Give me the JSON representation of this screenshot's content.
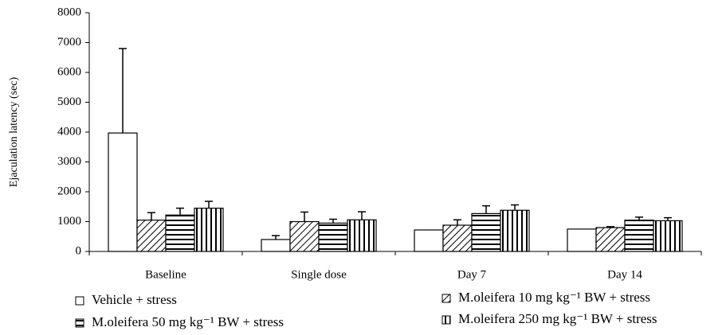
{
  "chart_data": {
    "type": "bar",
    "y_label": "Ejaculation latency (sec)",
    "categories": [
      "Baseline",
      "Single dose",
      "Day 7",
      "Day 14"
    ],
    "series": [
      {
        "name": "Vehicle + stress",
        "color": "#000000",
        "pattern": "none",
        "values": [
          3970,
          400,
          720,
          750
        ],
        "errors": [
          2830,
          130,
          0,
          0
        ]
      },
      {
        "name": "M.oleifera 10 mg kg⁻¹ BW + stress",
        "color": "#000000",
        "pattern": "diagonal",
        "values": [
          1050,
          1000,
          880,
          800
        ],
        "errors": [
          250,
          320,
          180,
          30
        ]
      },
      {
        "name": "M.oleifera 50 mg kg⁻¹ BW + stress",
        "color": "#000000",
        "pattern": "horizontal",
        "values": [
          1220,
          950,
          1270,
          1050
        ],
        "errors": [
          230,
          130,
          260,
          100
        ]
      },
      {
        "name": "M.oleifera 250 mg kg⁻¹ BW + stress",
        "color": "#000000",
        "pattern": "vertical",
        "values": [
          1450,
          1060,
          1380,
          1030
        ],
        "errors": [
          230,
          270,
          180,
          100
        ]
      }
    ],
    "ylim": [
      0,
      8000
    ],
    "yticks": [
      0,
      1000,
      2000,
      3000,
      4000,
      5000,
      6000,
      7000,
      8000
    ]
  }
}
